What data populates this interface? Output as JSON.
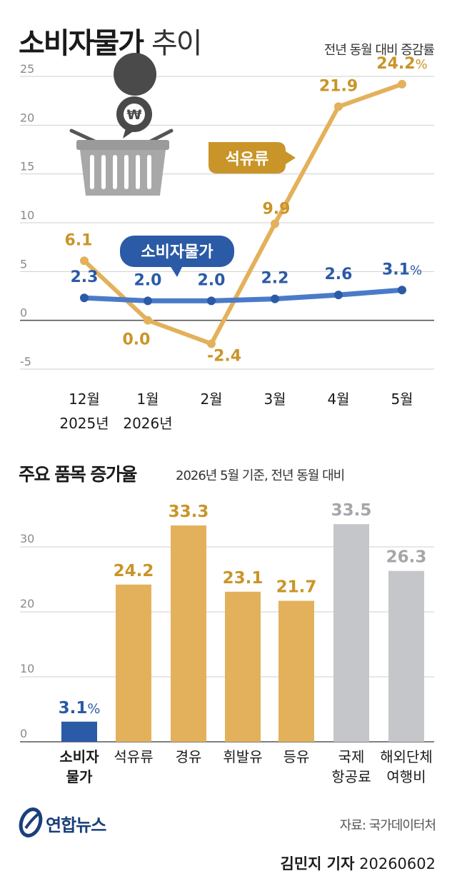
{
  "header": {
    "title_bold": "소비자물가",
    "title_light": "추이",
    "note": "전년 동월 대비 증감률"
  },
  "line_badges": {
    "petroleum": "석유류",
    "cpi": "소비자물가"
  },
  "bar_header": {
    "title": "주요 품목 증가율",
    "subtitle": "2026년 5월 기준, 전년 동월 대비"
  },
  "footer": {
    "logo_text": "연합뉴스",
    "source": "자료: 국가데이터처",
    "reporter": "김민지 기자",
    "date": "20260602"
  },
  "colors": {
    "petroleum": "#e3b15b",
    "petroleum_label": "#c99529",
    "cpi": "#4a7bc8",
    "cpi_label": "#2b5aa6",
    "cpi_bar": "#2b5aa6",
    "gray_bar": "#c4c6c9",
    "gray_label": "#a4a6a9",
    "grid": "#cfcfcf",
    "axis": "#555555"
  },
  "chart_data": [
    {
      "type": "line",
      "x": [
        "12월",
        "1월",
        "2월",
        "3월",
        "4월",
        "5월"
      ],
      "x_sublabels": [
        "2025년",
        "2026년",
        "",
        "",
        "",
        ""
      ],
      "ylim": [
        -5,
        25
      ],
      "yticks": [
        "-5",
        "0",
        "5",
        "10",
        "15",
        "20",
        "25"
      ],
      "grid": true,
      "unit_label": "%",
      "series": [
        {
          "name": "석유류",
          "values": [
            6.1,
            0.0,
            -2.4,
            9.9,
            21.9,
            24.2
          ],
          "labels": [
            "6.1",
            "0.0",
            "-2.4",
            "9.9",
            "21.9",
            "24.2"
          ]
        },
        {
          "name": "소비자물가",
          "values": [
            2.3,
            2.0,
            2.0,
            2.2,
            2.6,
            3.1
          ],
          "labels": [
            "2.3",
            "2.0",
            "2.0",
            "2.2",
            "2.6",
            "3.1"
          ]
        }
      ]
    },
    {
      "type": "bar",
      "categories": [
        "소비자\n물가",
        "석유류",
        "경유",
        "휘발유",
        "등유",
        "국제\n항공료",
        "해외단체\n여행비"
      ],
      "values": [
        3.1,
        24.2,
        33.3,
        23.1,
        21.7,
        33.5,
        26.3
      ],
      "labels": [
        "3.1",
        "24.2",
        "33.3",
        "23.1",
        "21.7",
        "33.5",
        "26.3"
      ],
      "color_groups": [
        "cpi",
        "petroleum",
        "petroleum",
        "petroleum",
        "petroleum",
        "gray",
        "gray"
      ],
      "ylim": [
        0,
        35
      ],
      "yticks": [
        "0",
        "10",
        "20",
        "30"
      ],
      "grid": true,
      "unit_label": "%"
    }
  ]
}
